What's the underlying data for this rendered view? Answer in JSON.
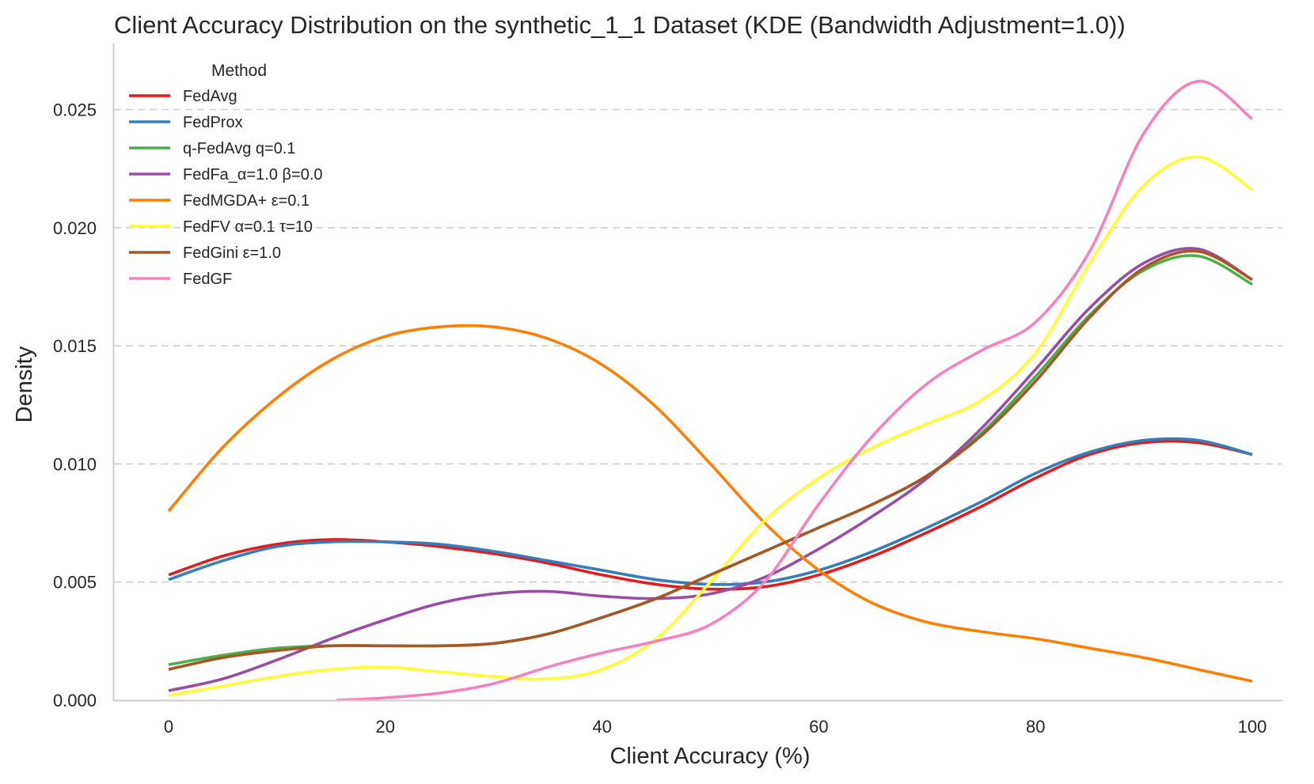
{
  "chart_data": {
    "type": "line",
    "title": "Client Accuracy Distribution on the synthetic_1_1 Dataset (KDE (Bandwidth Adjustment=1.0))",
    "xlabel": "Client Accuracy (%)",
    "ylabel": "Density",
    "xlim": [
      0,
      100
    ],
    "ylim": [
      0,
      0.0278
    ],
    "xticks": [
      0,
      20,
      40,
      60,
      80,
      100
    ],
    "xtick_labels": [
      "0",
      "20",
      "40",
      "60",
      "80",
      "100"
    ],
    "yticks": [
      0,
      0.005,
      0.01,
      0.015,
      0.02,
      0.025
    ],
    "ytick_labels": [
      "0.000",
      "0.005",
      "0.010",
      "0.015",
      "0.020",
      "0.025"
    ],
    "grid": "y-dashed",
    "legend": {
      "title": "Method",
      "placement": "top-left"
    },
    "series": [
      {
        "name": "FedAvg",
        "color": "#e41a1c",
        "x": [
          0,
          5,
          10,
          15,
          20,
          25,
          30,
          35,
          40,
          45,
          50,
          55,
          60,
          65,
          70,
          75,
          80,
          85,
          90,
          95,
          100
        ],
        "y": [
          0.0053,
          0.0061,
          0.0066,
          0.0068,
          0.0067,
          0.0065,
          0.0062,
          0.0058,
          0.0053,
          0.0049,
          0.0047,
          0.0048,
          0.0053,
          0.0061,
          0.0071,
          0.0082,
          0.0094,
          0.0104,
          0.0109,
          0.0109,
          0.0104
        ]
      },
      {
        "name": "FedProx",
        "color": "#377eb8",
        "x": [
          0,
          5,
          10,
          15,
          20,
          25,
          30,
          35,
          40,
          45,
          50,
          55,
          60,
          65,
          70,
          75,
          80,
          85,
          90,
          95,
          100
        ],
        "y": [
          0.0051,
          0.0059,
          0.0065,
          0.0067,
          0.0067,
          0.0066,
          0.0063,
          0.0059,
          0.0055,
          0.0051,
          0.0049,
          0.005,
          0.0055,
          0.0063,
          0.0073,
          0.0084,
          0.0096,
          0.0105,
          0.011,
          0.011,
          0.0104
        ]
      },
      {
        "name": "q-FedAvg q=0.1",
        "color": "#4daf4a",
        "x": [
          0,
          5,
          10,
          15,
          20,
          25,
          30,
          35,
          40,
          45,
          50,
          55,
          60,
          65,
          70,
          75,
          80,
          85,
          90,
          95,
          100
        ],
        "y": [
          0.0015,
          0.0019,
          0.0022,
          0.0023,
          0.0023,
          0.0023,
          0.0024,
          0.0028,
          0.0035,
          0.0043,
          0.0053,
          0.0063,
          0.0073,
          0.0083,
          0.0095,
          0.0113,
          0.0137,
          0.0163,
          0.0182,
          0.0188,
          0.0176
        ]
      },
      {
        "name": "FedFa_α=1.0 β=0.0",
        "color": "#984ea3",
        "x": [
          0,
          5,
          10,
          15,
          20,
          25,
          30,
          35,
          40,
          45,
          50,
          55,
          60,
          65,
          70,
          75,
          80,
          85,
          90,
          95,
          100
        ],
        "y": [
          0.0004,
          0.0009,
          0.0017,
          0.0026,
          0.0034,
          0.0041,
          0.0045,
          0.0046,
          0.0044,
          0.0043,
          0.0045,
          0.0052,
          0.0064,
          0.0078,
          0.0094,
          0.0115,
          0.014,
          0.0166,
          0.0185,
          0.0191,
          0.0178
        ]
      },
      {
        "name": "FedMGDA+ ε=0.1",
        "color": "#ff7f00",
        "x": [
          0,
          5,
          10,
          15,
          20,
          25,
          30,
          35,
          40,
          45,
          50,
          55,
          60,
          65,
          70,
          75,
          80,
          85,
          90,
          95,
          100
        ],
        "y": [
          0.008,
          0.0107,
          0.0128,
          0.0144,
          0.0154,
          0.0158,
          0.0158,
          0.0153,
          0.0142,
          0.0124,
          0.01,
          0.0075,
          0.0055,
          0.0041,
          0.0033,
          0.0029,
          0.0026,
          0.0022,
          0.0018,
          0.0013,
          0.0008
        ]
      },
      {
        "name": "FedFV α=0.1 τ=10",
        "color": "#ffff33",
        "x": [
          0,
          5,
          10,
          15,
          20,
          25,
          30,
          35,
          40,
          45,
          50,
          55,
          60,
          65,
          70,
          75,
          80,
          85,
          90,
          95,
          100
        ],
        "y": [
          0.0002,
          0.0006,
          0.001,
          0.0013,
          0.0014,
          0.0012,
          0.001,
          0.0009,
          0.0013,
          0.0026,
          0.005,
          0.0076,
          0.0094,
          0.0107,
          0.0117,
          0.0127,
          0.0147,
          0.0185,
          0.0218,
          0.023,
          0.0216
        ]
      },
      {
        "name": "FedGini ε=1.0",
        "color": "#a65628",
        "x": [
          0,
          5,
          10,
          15,
          20,
          25,
          30,
          35,
          40,
          45,
          50,
          55,
          60,
          65,
          70,
          75,
          80,
          85,
          90,
          95,
          100
        ],
        "y": [
          0.0013,
          0.0018,
          0.0021,
          0.0023,
          0.0023,
          0.0023,
          0.0024,
          0.0028,
          0.0035,
          0.0043,
          0.0053,
          0.0063,
          0.0073,
          0.0083,
          0.0095,
          0.0112,
          0.0135,
          0.0162,
          0.0183,
          0.019,
          0.0178
        ]
      },
      {
        "name": "FedGF",
        "color": "#f781bf",
        "x": [
          15.5,
          20,
          25,
          30,
          35,
          40,
          45,
          50,
          55,
          60,
          65,
          70,
          75,
          80,
          85,
          90,
          95,
          100
        ],
        "y": [
          0.0,
          0.0001,
          0.0003,
          0.0007,
          0.0014,
          0.002,
          0.0025,
          0.0032,
          0.005,
          0.0083,
          0.0112,
          0.0134,
          0.0148,
          0.016,
          0.019,
          0.024,
          0.0262,
          0.0246
        ]
      }
    ]
  }
}
